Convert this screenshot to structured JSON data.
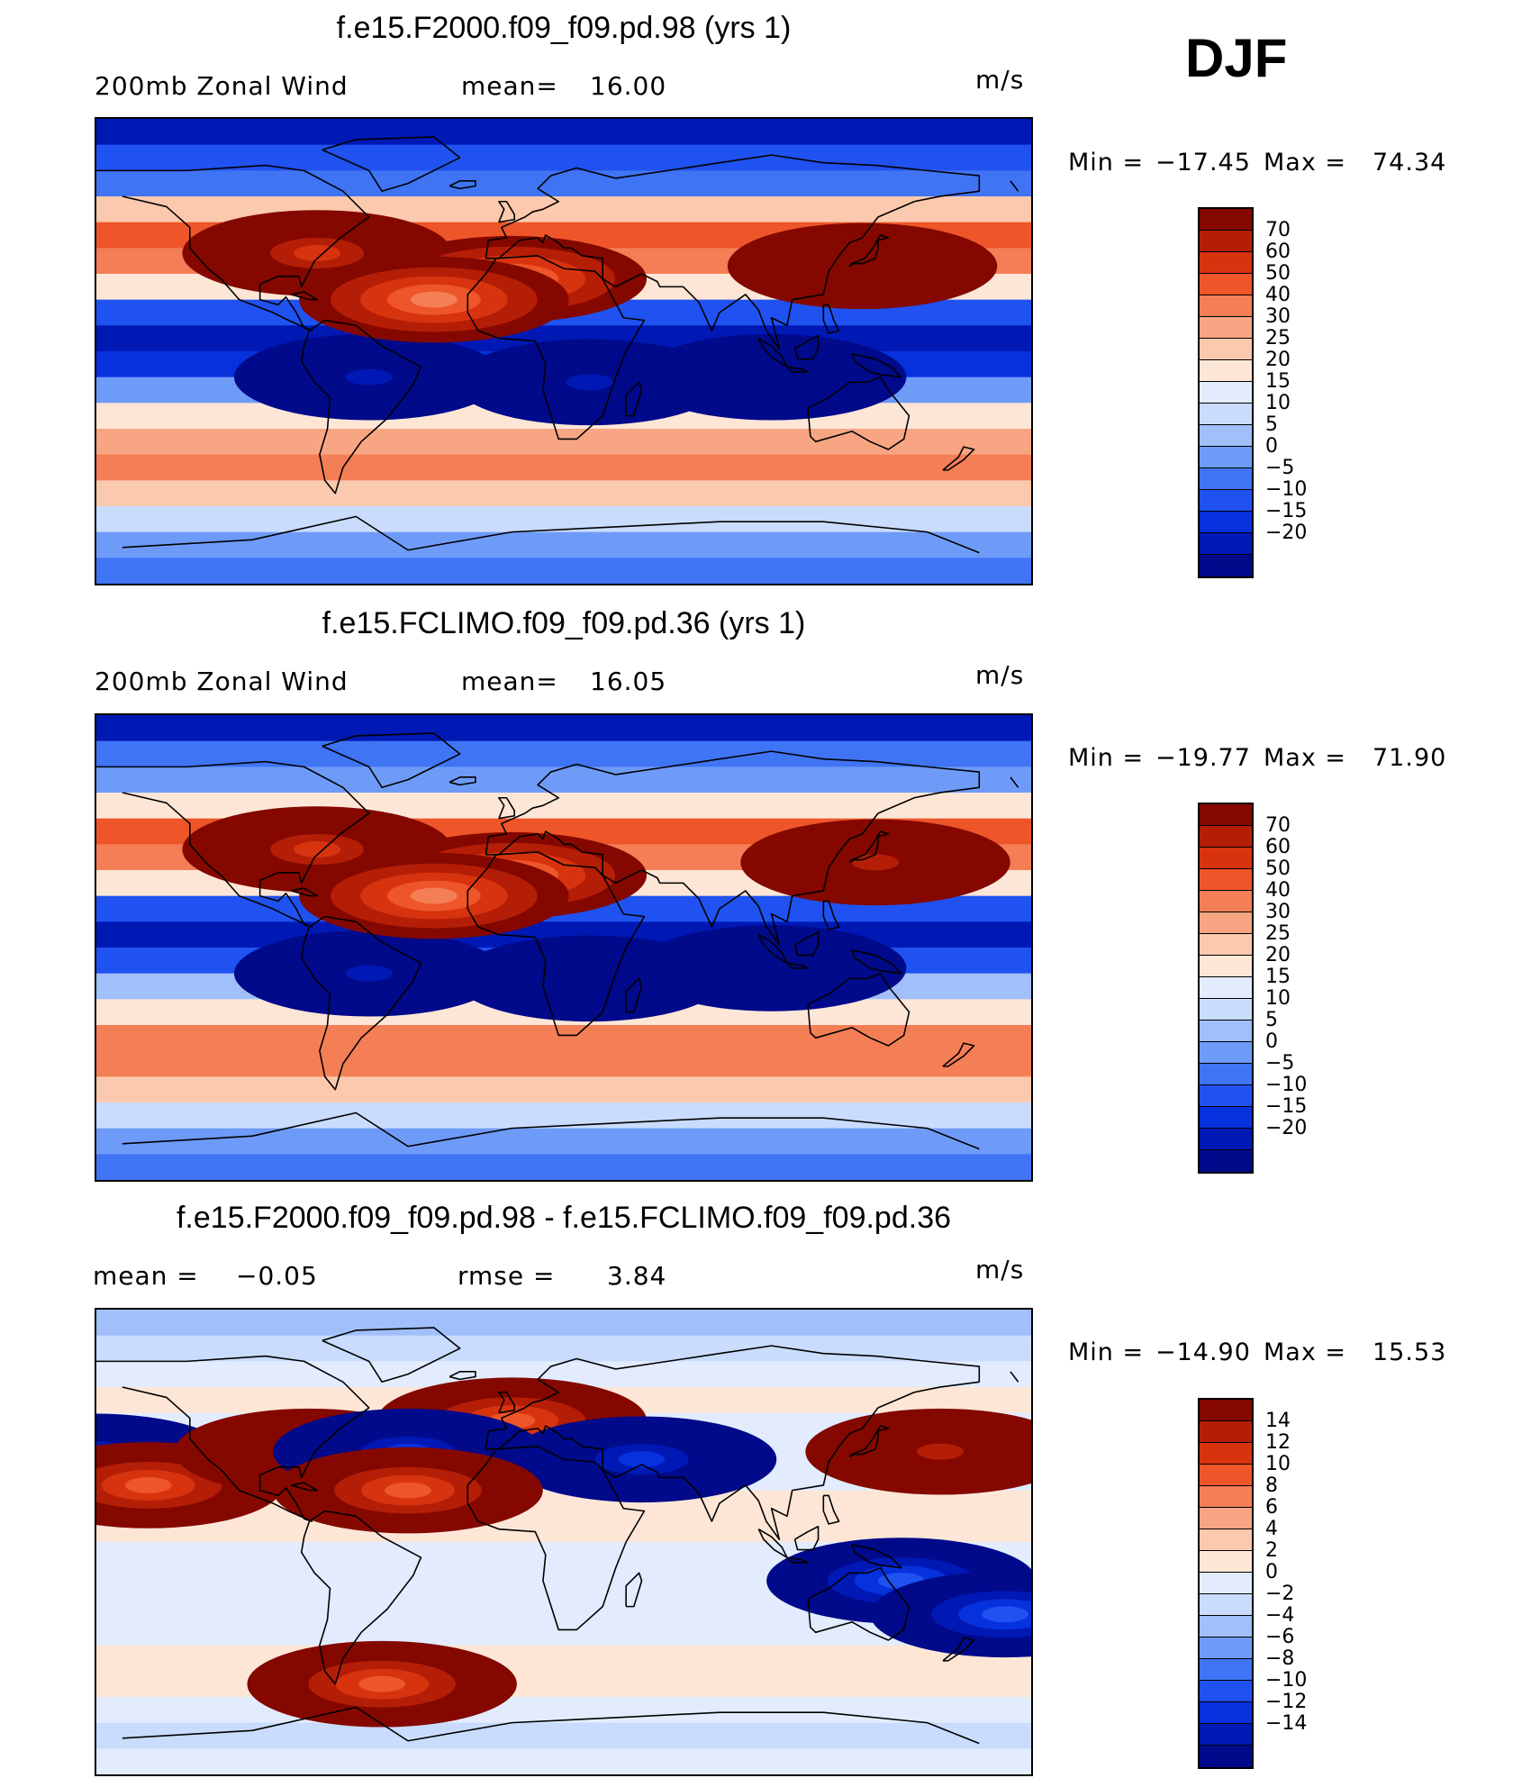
{
  "season": "DJF",
  "colors": {
    "wind": [
      "#000a8a",
      "#0019b5",
      "#0631dd",
      "#1f52f0",
      "#3f74f5",
      "#6f9bf8",
      "#a0bffb",
      "#c9dcfd",
      "#e2ecfe",
      "#fde6d6",
      "#fbc9ad",
      "#f7a583",
      "#f47e55",
      "#ee5528",
      "#d8330f",
      "#b41e06",
      "#840800"
    ],
    "diff": [
      "#000a8a",
      "#0019b5",
      "#0631dd",
      "#1f52f0",
      "#3f74f5",
      "#6f9bf8",
      "#a0bffb",
      "#c9dcfd",
      "#e2ecfe",
      "#fde6d6",
      "#fbc9ad",
      "#f7a583",
      "#f47e55",
      "#ee5528",
      "#d8330f",
      "#b41e06",
      "#840800"
    ]
  },
  "chart_data": [
    {
      "type": "heatmap",
      "title": "f.e15.F2000.f09_f09.pd.98 (yrs 1)",
      "left_label": "200mb  Zonal  Wind",
      "mean_label": "mean=",
      "mean_value": "16.00",
      "units": "m/s",
      "min_label": "Min  =",
      "min_value": "−17.45",
      "max_label": "Max  =",
      "max_value": "74.34",
      "levels": [
        "70",
        "60",
        "50",
        "40",
        "30",
        "25",
        "20",
        "15",
        "10",
        "5",
        "0",
        "−5",
        "−10",
        "−15",
        "−20"
      ],
      "lat_profile": [
        1,
        3,
        4,
        10,
        13,
        12,
        9,
        3,
        1,
        2,
        5,
        9,
        11,
        12,
        10,
        7,
        5,
        4
      ],
      "features": [
        {
          "lon": 135,
          "lat": 33,
          "v": 16
        },
        {
          "lon": -75,
          "lat": 38,
          "v": 14
        },
        {
          "lon": 0,
          "lat": 28,
          "v": 12
        },
        {
          "lon": 100,
          "lat": -10,
          "v": 0
        },
        {
          "lon": 30,
          "lat": -12,
          "v": 1
        },
        {
          "lon": -55,
          "lat": -10,
          "v": 1
        },
        {
          "lon": -30,
          "lat": 20,
          "v": 12
        }
      ]
    },
    {
      "type": "heatmap",
      "title": "f.e15.FCLIMO.f09_f09.pd.36 (yrs 1)",
      "left_label": "200mb  Zonal  Wind",
      "mean_label": "mean=",
      "mean_value": "16.05",
      "units": "m/s",
      "min_label": "Min  =",
      "min_value": "−19.77",
      "max_label": "Max  =",
      "max_value": "71.90",
      "levels": [
        "70",
        "60",
        "50",
        "40",
        "30",
        "25",
        "20",
        "15",
        "10",
        "5",
        "0",
        "−5",
        "−10",
        "−15",
        "−20"
      ],
      "lat_profile": [
        1,
        4,
        5,
        9,
        13,
        12,
        9,
        3,
        1,
        3,
        6,
        9,
        12,
        12,
        10,
        7,
        5,
        4
      ],
      "features": [
        {
          "lon": 140,
          "lat": 33,
          "v": 15
        },
        {
          "lon": -75,
          "lat": 38,
          "v": 14
        },
        {
          "lon": 0,
          "lat": 28,
          "v": 12
        },
        {
          "lon": 100,
          "lat": -8,
          "v": 0
        },
        {
          "lon": 30,
          "lat": -12,
          "v": 0
        },
        {
          "lon": -55,
          "lat": -10,
          "v": 1
        },
        {
          "lon": -30,
          "lat": 20,
          "v": 12
        }
      ]
    },
    {
      "type": "heatmap",
      "title": "f.e15.F2000.f09_f09.pd.98 - f.e15.FCLIMO.f09_f09.pd.36",
      "left_label": "mean  =",
      "left_value": "−0.05",
      "mean_label": "rmse  =",
      "mean_value": "3.84",
      "units": "m/s",
      "min_label": "Min  =",
      "min_value": "−14.90",
      "max_label": "Max  =",
      "max_value": "15.53",
      "levels": [
        "14",
        "12",
        "10",
        "8",
        "6",
        "4",
        "2",
        "0",
        "−2",
        "−4",
        "−6",
        "−8",
        "−10",
        "−12",
        "−14"
      ],
      "lat_profile": [
        6,
        7,
        8,
        9,
        8,
        8,
        8,
        9,
        9,
        8,
        8,
        8,
        8,
        9,
        9,
        8,
        7,
        8
      ],
      "features": [
        {
          "lon": 0,
          "lat": 47,
          "v": 13
        },
        {
          "lon": 50,
          "lat": 32,
          "v": 2
        },
        {
          "lon": 165,
          "lat": 35,
          "v": 15
        },
        {
          "lon": -160,
          "lat": 33,
          "v": 2
        },
        {
          "lon": -140,
          "lat": 22,
          "v": 13
        },
        {
          "lon": -78,
          "lat": 35,
          "v": 15
        },
        {
          "lon": -40,
          "lat": 35,
          "v": 2
        },
        {
          "lon": -40,
          "lat": 20,
          "v": 13
        },
        {
          "lon": 150,
          "lat": -15,
          "v": 3
        },
        {
          "lon": -170,
          "lat": -28,
          "v": 3
        },
        {
          "lon": -50,
          "lat": -55,
          "v": 13
        }
      ]
    }
  ]
}
